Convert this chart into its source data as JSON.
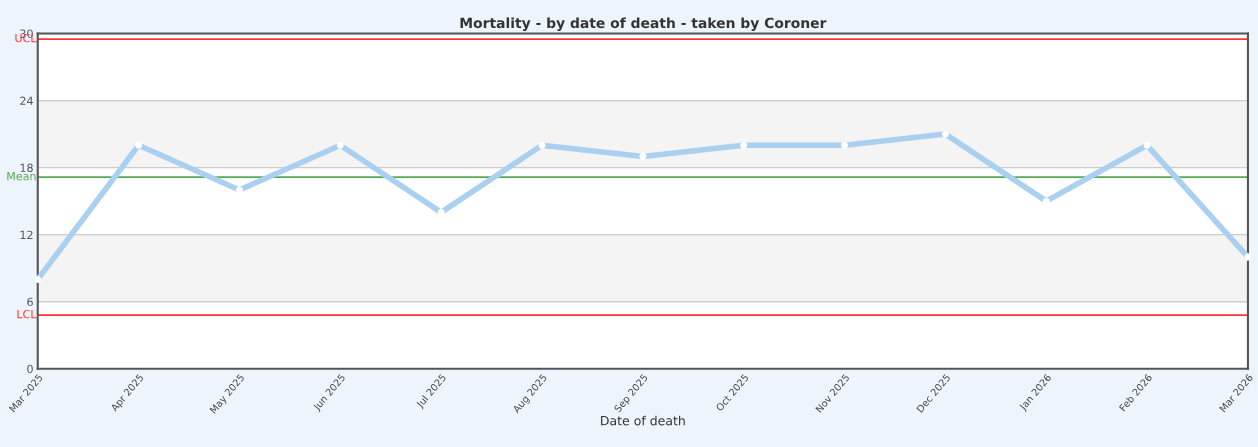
{
  "chart_data": {
    "type": "line",
    "title": "Mortality - by date of death - taken by Coroner",
    "xlabel": "Date of death",
    "categories": [
      "Mar 2025",
      "Apr 2025",
      "May 2025",
      "Jun 2025",
      "Jul 2025",
      "Aug 2025",
      "Sep 2025",
      "Oct 2025",
      "Nov 2025",
      "Dec 2025",
      "Jan 2026",
      "Feb 2026",
      "Mar 2026"
    ],
    "series": [
      {
        "color": "#a9d0f0",
        "values": [
          8,
          20,
          16,
          20,
          14,
          20,
          19,
          20,
          20,
          21,
          15,
          20,
          10
        ]
      }
    ],
    "ylim": [
      0,
      30
    ],
    "yticks": [
      0,
      6,
      12,
      18,
      24,
      30
    ],
    "grid": "y",
    "marker": "circle",
    "line_style": "solid",
    "ref_lines": [
      {
        "axis": "y",
        "value": 29.5,
        "label": "UCL",
        "color": "#ff3333"
      },
      {
        "axis": "y",
        "value": 17.15,
        "label": "Mean",
        "color": "#55aa55"
      },
      {
        "axis": "y",
        "value": 4.8,
        "label": "LCL",
        "color": "#ff3333"
      }
    ],
    "bands": [
      {
        "axis": "y",
        "from": 6,
        "to": 12,
        "color": "#f4f4f4"
      },
      {
        "axis": "y",
        "from": 18,
        "to": 24,
        "color": "#f4f4f4"
      }
    ]
  }
}
